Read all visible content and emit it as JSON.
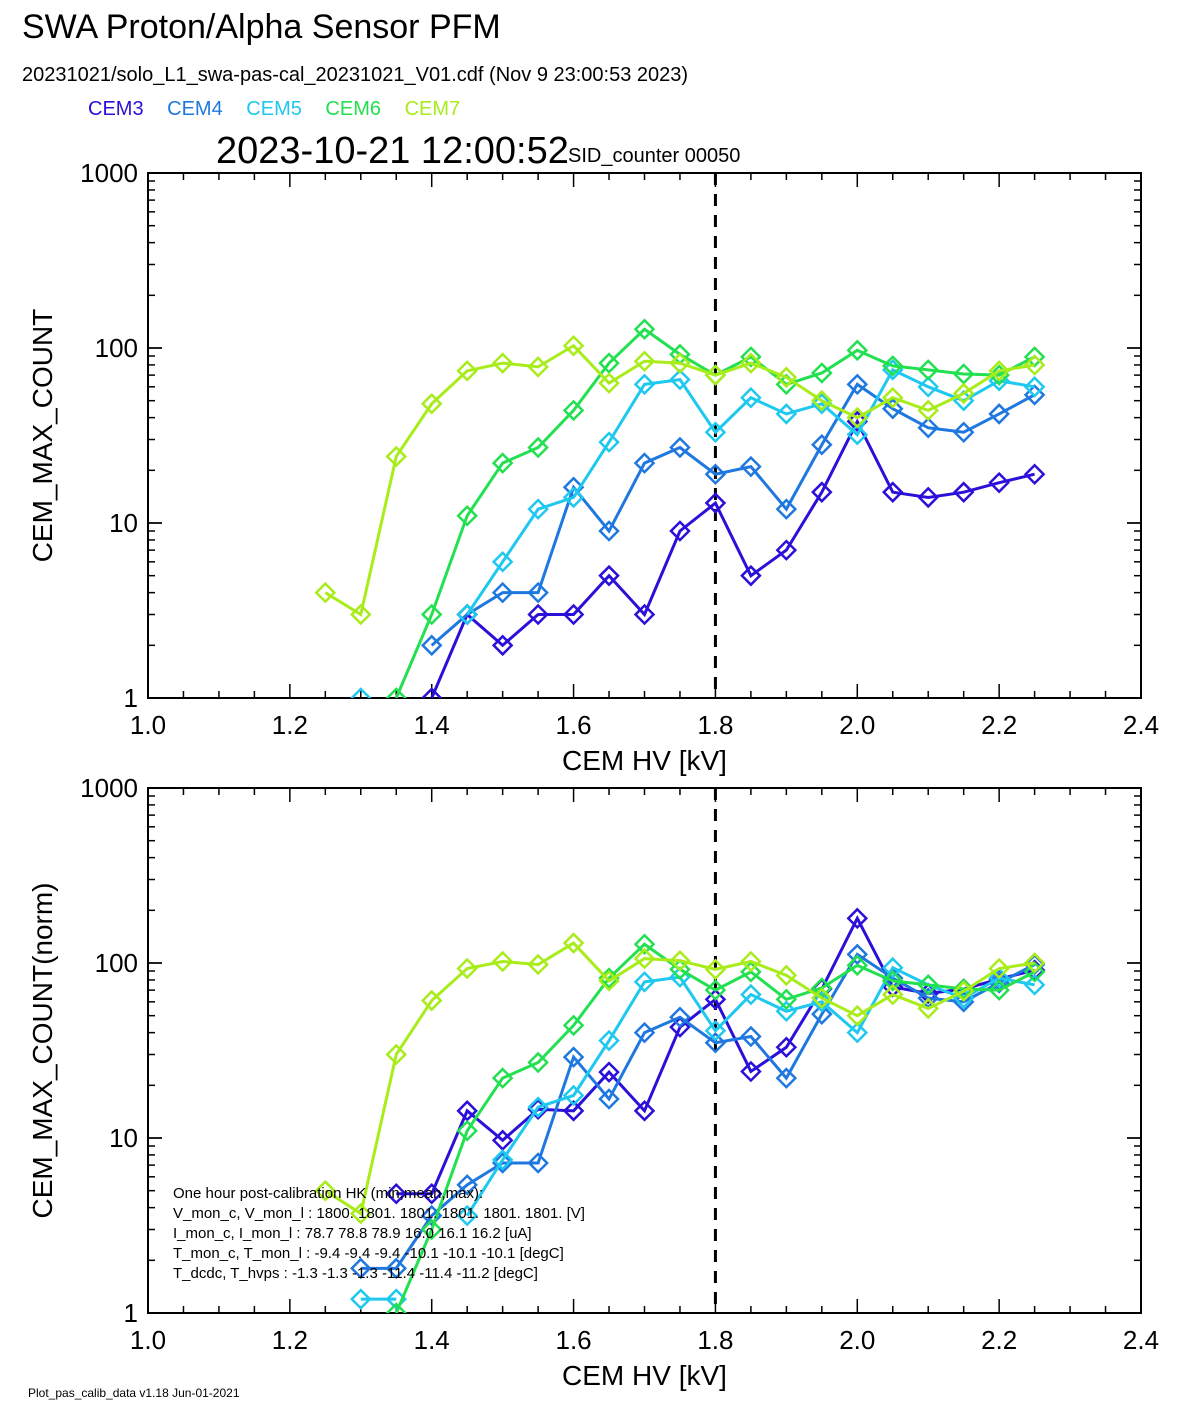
{
  "header": {
    "title": "SWA Proton/Alpha Sensor PFM",
    "subtitle": "20231021/solo_L1_swa-pas-cal_20231021_V01.cdf  (Nov  9 23:00:53 2023)",
    "timestamp": "2023-10-21 12:00:52",
    "sid_counter": "SID_counter 00050",
    "legend": [
      {
        "label": "CEM3",
        "color": "#2a10d8"
      },
      {
        "label": "CEM4",
        "color": "#1f78e0"
      },
      {
        "label": "CEM5",
        "color": "#1ec8ee"
      },
      {
        "label": "CEM6",
        "color": "#22e050"
      },
      {
        "label": "CEM7",
        "color": "#a8ec1a"
      }
    ]
  },
  "footer": "Plot_pas_calib_data v1.18 Jun-01-2021",
  "annotation": {
    "lines": [
      "One hour post-calibration HK (min,mean,max):",
      "V_mon_c, V_mon_l :   1800.   1801.   1801.     1801.  1801.  1801.  [V]",
      "I_mon_c, I_mon_l :     78.7   78.8   78.9        16.0   16.1   16.2  [uA]",
      "T_mon_c, T_mon_l :    -9.4   -9.4   -9.4        -10.1  -10.1  -10.1  [degC]",
      "T_dcdc,    T_hvps :   -1.3   -1.3   -1.3         -11.4  -11.4  -11.2  [degC]"
    ]
  },
  "chart_data": [
    {
      "type": "line",
      "xlabel": "CEM HV [kV]",
      "ylabel": "CEM_MAX_COUNT",
      "xlim": [
        1.0,
        2.4
      ],
      "ylim": [
        1,
        1000
      ],
      "yscale": "log",
      "xticks": [
        "1.0",
        "1.2",
        "1.4",
        "1.6",
        "1.8",
        "2.0",
        "2.2",
        "2.4"
      ],
      "yticks": [
        "1",
        "10",
        "100",
        "1000"
      ],
      "vline": 1.8,
      "x": [
        1.25,
        1.3,
        1.35,
        1.4,
        1.45,
        1.5,
        1.55,
        1.6,
        1.65,
        1.7,
        1.75,
        1.8,
        1.85,
        1.9,
        1.95,
        2.0,
        2.05,
        2.1,
        2.15,
        2.2,
        2.25
      ],
      "series": [
        {
          "name": "CEM3",
          "values": [
            null,
            null,
            null,
            1,
            3,
            2,
            3,
            3,
            5,
            3,
            9,
            13,
            5,
            7,
            15,
            38,
            15,
            14,
            15,
            17,
            19
          ]
        },
        {
          "name": "CEM4",
          "values": [
            null,
            null,
            null,
            2,
            3,
            4,
            4,
            16,
            9,
            22,
            27,
            19,
            21,
            12,
            28,
            62,
            45,
            35,
            33,
            42,
            54
          ]
        },
        {
          "name": "CEM5",
          "values": [
            null,
            1,
            null,
            null,
            3,
            6,
            12,
            14,
            29,
            62,
            66,
            33,
            52,
            42,
            48,
            32,
            75,
            60,
            50,
            65,
            60
          ]
        },
        {
          "name": "CEM6",
          "values": [
            null,
            null,
            1,
            3,
            11,
            22,
            27,
            44,
            82,
            128,
            92,
            70,
            89,
            62,
            72,
            97,
            79,
            75,
            71,
            70,
            89
          ]
        },
        {
          "name": "CEM7",
          "values": [
            4,
            3,
            24,
            48,
            74,
            82,
            78,
            103,
            63,
            84,
            82,
            70,
            82,
            68,
            50,
            40,
            52,
            44,
            55,
            74,
            80
          ]
        }
      ]
    },
    {
      "type": "line",
      "xlabel": "CEM HV [kV]",
      "ylabel": "CEM_MAX_COUNT(norm)",
      "xlim": [
        1.0,
        2.4
      ],
      "ylim": [
        1,
        1000
      ],
      "yscale": "log",
      "xticks": [
        "1.0",
        "1.2",
        "1.4",
        "1.6",
        "1.8",
        "2.0",
        "2.2",
        "2.4"
      ],
      "yticks": [
        "1",
        "10",
        "100",
        "1000"
      ],
      "vline": 1.8,
      "x": [
        1.25,
        1.3,
        1.35,
        1.4,
        1.45,
        1.5,
        1.55,
        1.6,
        1.65,
        1.7,
        1.75,
        1.8,
        1.85,
        1.9,
        1.95,
        2.0,
        2.05,
        2.1,
        2.15,
        2.2,
        2.25
      ],
      "series": [
        {
          "name": "CEM3",
          "values": [
            null,
            null,
            4.8,
            4.8,
            14.3,
            9.7,
            14.6,
            14.3,
            23.8,
            14.3,
            43,
            62,
            24,
            33,
            71,
            180,
            73,
            67,
            71,
            81,
            91
          ]
        },
        {
          "name": "CEM4",
          "values": [
            null,
            1.8,
            1.8,
            3.6,
            5.4,
            7.2,
            7.2,
            29,
            16.7,
            40,
            49,
            35,
            38,
            22,
            51,
            112,
            82,
            63,
            60,
            77,
            98
          ]
        },
        {
          "name": "CEM5",
          "values": [
            null,
            1.2,
            1.2,
            null,
            3.6,
            7.5,
            15,
            17.5,
            36,
            78,
            83,
            41,
            66,
            53,
            60,
            40,
            94,
            75,
            63,
            82,
            75
          ]
        },
        {
          "name": "CEM6",
          "values": [
            null,
            null,
            1,
            3,
            11,
            22,
            27,
            44,
            82,
            128,
            92,
            70,
            89,
            62,
            72,
            97,
            79,
            75,
            71,
            70,
            89
          ]
        },
        {
          "name": "CEM7",
          "values": [
            5,
            3.7,
            30,
            61,
            93,
            102,
            98,
            130,
            79,
            106,
            103,
            92,
            102,
            85,
            63,
            50,
            66,
            55,
            69,
            93,
            100
          ]
        }
      ]
    }
  ]
}
